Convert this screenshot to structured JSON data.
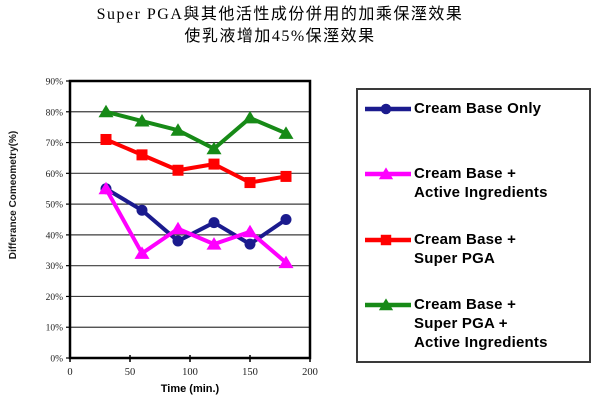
{
  "title": {
    "line1": "Super PGA與其他活性成份併用的加乘保溼效果",
    "line2": "使乳液增加45%保溼效果"
  },
  "chart_data": {
    "type": "line",
    "x": [
      30,
      60,
      90,
      120,
      150,
      180
    ],
    "xlabel": "Time (min.)",
    "ylabel": "Differance Comeometry(%)",
    "xlim": [
      0,
      200
    ],
    "ylim": [
      0,
      90
    ],
    "x_ticks": [
      0,
      50,
      100,
      150,
      200
    ],
    "x_tick_labels": [
      "0",
      "50",
      "100",
      "150",
      "200"
    ],
    "y_tick_step": 10,
    "y_tick_labels": [
      "0%",
      "10%",
      "20%",
      "30%",
      "40%",
      "50%",
      "60%",
      "70%",
      "80%",
      "90%"
    ],
    "grid": true,
    "legend_position": "right",
    "series": [
      {
        "name": "Cream Base Only",
        "legend_label": "Cream Base Only",
        "color": "#1b1b8e",
        "marker": "circle",
        "values": [
          55,
          48,
          38,
          44,
          37,
          45
        ]
      },
      {
        "name": "Cream Base + Active Ingredients",
        "legend_label": "Cream Base +\nActive Ingredients",
        "color": "#ff00ff",
        "marker": "triangle",
        "values": [
          55,
          34,
          42,
          37,
          41,
          31
        ]
      },
      {
        "name": "Cream Base + Super PGA",
        "legend_label": "Cream Base +\nSuper PGA",
        "color": "#ff0000",
        "marker": "square",
        "values": [
          71,
          66,
          61,
          63,
          57,
          59
        ]
      },
      {
        "name": "Cream Base + Super PGA + Active Ingredients",
        "legend_label": "Cream Base +\nSuper PGA +\nActive Ingredients",
        "color": "#178a17",
        "marker": "triangle",
        "values": [
          80,
          77,
          74,
          68,
          78,
          73
        ]
      }
    ]
  }
}
